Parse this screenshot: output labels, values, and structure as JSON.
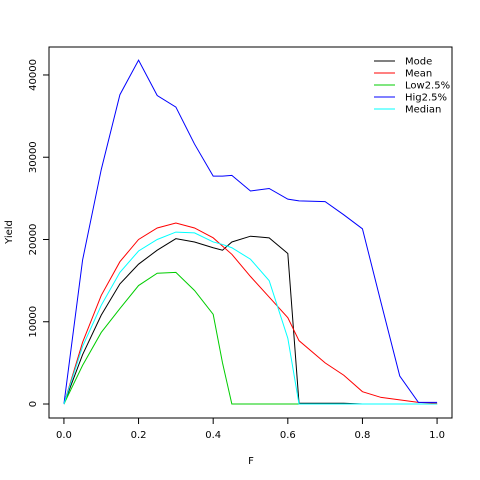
{
  "chart_data": {
    "type": "line",
    "title": "",
    "xlabel": "F",
    "ylabel": "Yield",
    "xlim": [
      -0.04,
      1.04
    ],
    "ylim": [
      -1700,
      43400
    ],
    "x_ticks": [
      "0.0",
      "0.2",
      "0.4",
      "0.6",
      "0.8",
      "1.0"
    ],
    "y_ticks": [
      "0",
      "10000",
      "20000",
      "30000",
      "40000"
    ],
    "grid": false,
    "legend_position": "top-right",
    "x": [
      0.0,
      0.05,
      0.1,
      0.15,
      0.2,
      0.25,
      0.3,
      0.35,
      0.4,
      0.425,
      0.45,
      0.5,
      0.55,
      0.6,
      0.63,
      0.7,
      0.75,
      0.8,
      0.85,
      0.9,
      0.95,
      1.0
    ],
    "series": [
      {
        "name": "Mode",
        "color": "#000000",
        "values": [
          0,
          6000,
          10800,
          14600,
          17000,
          18700,
          20100,
          19700,
          19000,
          18700,
          19700,
          20400,
          20200,
          18300,
          100,
          100,
          100,
          0,
          0,
          0,
          0,
          0
        ]
      },
      {
        "name": "Mean",
        "color": "#ff0000",
        "values": [
          0,
          7500,
          13200,
          17300,
          20000,
          21400,
          22000,
          21400,
          20200,
          19200,
          18200,
          15500,
          13000,
          10500,
          7700,
          5000,
          3500,
          1500,
          800,
          500,
          200,
          100
        ]
      },
      {
        "name": "Low2.5%",
        "color": "#00cd00",
        "values": [
          0,
          4700,
          8700,
          11600,
          14400,
          15900,
          16000,
          13800,
          10900,
          5000,
          0,
          0,
          0,
          0,
          0,
          0,
          0,
          0,
          0,
          0,
          0,
          0
        ]
      },
      {
        "name": "Hig2.5%",
        "color": "#0000ff",
        "values": [
          0,
          17500,
          28500,
          37600,
          41800,
          37500,
          36100,
          31600,
          27700,
          27700,
          27800,
          25900,
          26200,
          24900,
          24700,
          24600,
          23000,
          21300,
          12300,
          3400,
          200,
          200
        ]
      },
      {
        "name": "Median",
        "color": "#00ffff",
        "values": [
          0,
          7000,
          12000,
          16000,
          18600,
          20000,
          20900,
          20800,
          19700,
          19400,
          19000,
          17600,
          15000,
          8000,
          0,
          0,
          0,
          0,
          0,
          0,
          0,
          0
        ]
      }
    ]
  }
}
